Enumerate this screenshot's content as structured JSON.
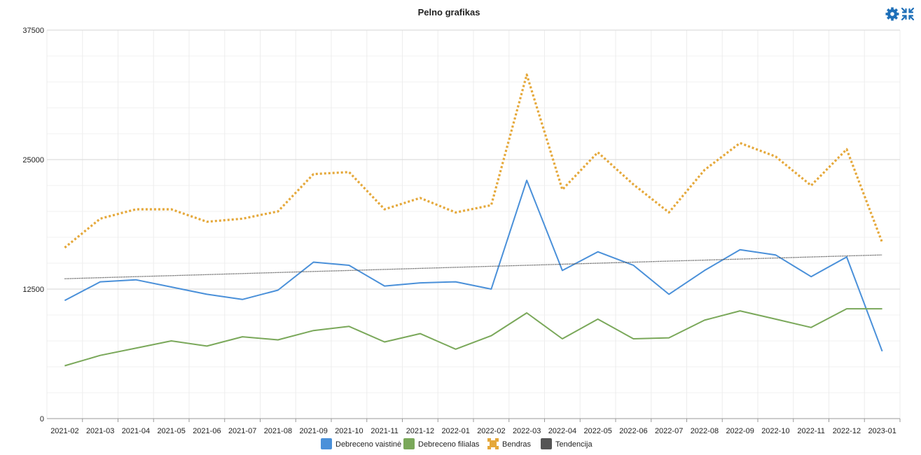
{
  "chart_data": {
    "type": "line",
    "title": "Pelno grafikas",
    "xlabel": "",
    "ylabel": "",
    "ylim": [
      0,
      37500
    ],
    "yticks": [
      "0",
      "12500",
      "25000",
      "37500"
    ],
    "categories": [
      "2021-02",
      "2021-03",
      "2021-04",
      "2021-05",
      "2021-06",
      "2021-07",
      "2021-08",
      "2021-09",
      "2021-10",
      "2021-11",
      "2021-12",
      "2022-01",
      "2022-02",
      "2022-03",
      "2022-04",
      "2022-05",
      "2022-06",
      "2022-07",
      "2022-08",
      "2022-09",
      "2022-10",
      "2022-11",
      "2022-12",
      "2023-01"
    ],
    "grid": true,
    "legend_position": "bottom",
    "series": [
      {
        "name": "Debreceno vaistinė",
        "color": "#4a90d9",
        "style": "solid",
        "values": [
          11400,
          13200,
          13400,
          12700,
          12000,
          11500,
          12400,
          15100,
          14800,
          12800,
          13100,
          13200,
          12500,
          23000,
          14300,
          16100,
          14800,
          12000,
          14300,
          16300,
          15800,
          13700,
          15600,
          6500
        ]
      },
      {
        "name": "Debreceno filialas",
        "color": "#7aa85a",
        "style": "solid",
        "values": [
          5100,
          6100,
          6800,
          7500,
          7000,
          7900,
          7600,
          8500,
          8900,
          7400,
          8200,
          6700,
          8000,
          10200,
          7700,
          9600,
          7700,
          7800,
          9500,
          10400,
          9600,
          8800,
          10600,
          10600
        ]
      },
      {
        "name": "Bendras",
        "color": "#e5a83a",
        "style": "dotted",
        "values": [
          16500,
          19300,
          20200,
          20200,
          19000,
          19300,
          20000,
          23600,
          23800,
          20200,
          21300,
          19900,
          20600,
          33200,
          22100,
          25700,
          22600,
          19900,
          24000,
          26600,
          25300,
          22500,
          26000,
          17000
        ]
      },
      {
        "name": "Tendencija",
        "color": "#555555",
        "style": "thin-dotted",
        "values": [
          13500,
          13600,
          13700,
          13800,
          13900,
          14000,
          14100,
          14200,
          14300,
          14400,
          14500,
          14600,
          14700,
          14800,
          14900,
          15000,
          15100,
          15200,
          15300,
          15400,
          15500,
          15600,
          15700,
          15800
        ]
      }
    ]
  },
  "toolbar": {
    "settings_icon": "gear-icon",
    "collapse_icon": "compress-icon",
    "accent_color": "#1e6fb8"
  }
}
